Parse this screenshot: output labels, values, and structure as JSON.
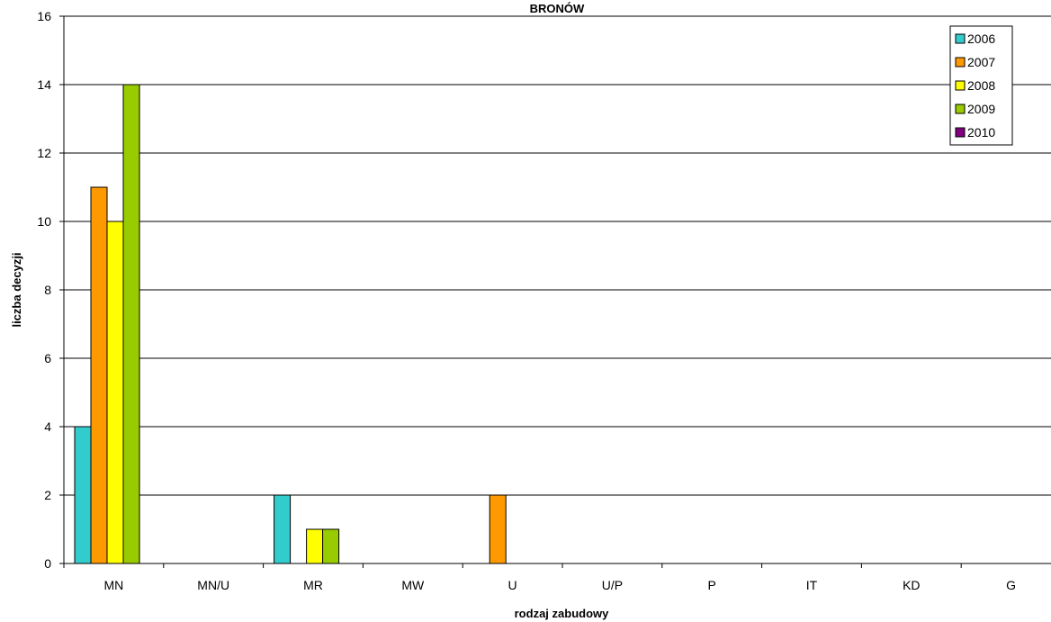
{
  "chart_data": {
    "type": "bar",
    "title": "BRONÓW",
    "xlabel": "rodzaj zabudowy",
    "ylabel": "liczba decyzji",
    "ylim": [
      0,
      16
    ],
    "yticks": [
      0,
      2,
      4,
      6,
      8,
      10,
      12,
      14,
      16
    ],
    "categories": [
      "MN",
      "MN/U",
      "MR",
      "MW",
      "U",
      "U/P",
      "P",
      "IT",
      "KD",
      "G"
    ],
    "series": [
      {
        "name": "2006",
        "color": "#33CCCC",
        "values": [
          4,
          0,
          2,
          0,
          0,
          0,
          0,
          0,
          0,
          0
        ]
      },
      {
        "name": "2007",
        "color": "#FF9900",
        "values": [
          11,
          0,
          0,
          0,
          2,
          0,
          0,
          0,
          0,
          0
        ]
      },
      {
        "name": "2008",
        "color": "#FFFF00",
        "values": [
          10,
          0,
          1,
          0,
          0,
          0,
          0,
          0,
          0,
          0
        ]
      },
      {
        "name": "2009",
        "color": "#99CC00",
        "values": [
          14,
          0,
          1,
          0,
          0,
          0,
          0,
          0,
          0,
          0
        ]
      },
      {
        "name": "2010",
        "color": "#800080",
        "values": [
          0,
          0,
          0,
          0,
          0,
          0,
          0,
          0,
          0,
          0
        ]
      }
    ],
    "grid": true,
    "legend_position": "top-right"
  }
}
